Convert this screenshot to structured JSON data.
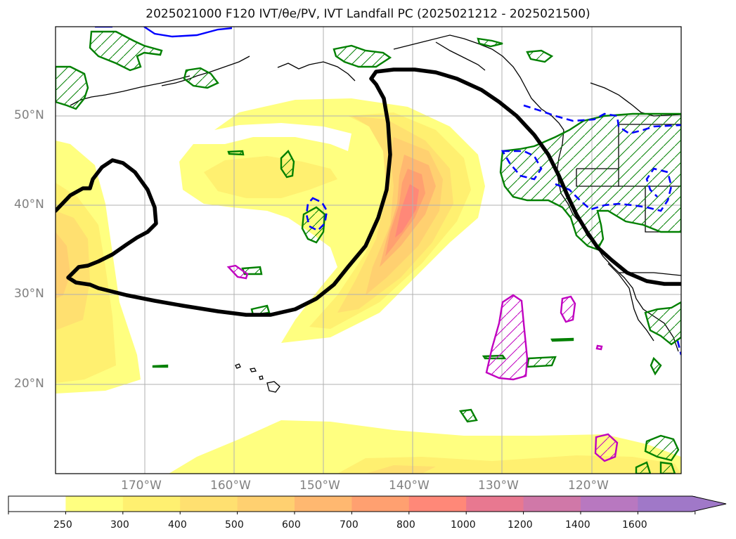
{
  "title": "2025021000 F120 IVT/θe/PV, IVT Landfall PC (2025021212 - 2025021500)",
  "lat_labels": [
    "50°N",
    "40°N",
    "30°N",
    "20°N"
  ],
  "lon_labels": [
    "170°W",
    "160°W",
    "150°W",
    "140°W",
    "130°W",
    "120°W"
  ],
  "colorbar": {
    "levels": [
      "250",
      "300",
      "400",
      "500",
      "600",
      "700",
      "800",
      "1000",
      "1200",
      "1400",
      "1600"
    ],
    "colors": [
      "#ffffff",
      "#ffff80",
      "#fff070",
      "#ffe070",
      "#ffd070",
      "#ffb870",
      "#ffa070",
      "#ff8878",
      "#e87890",
      "#d078a8",
      "#b878c0",
      "#a078c8"
    ],
    "extend": "max"
  },
  "legend_colors": {
    "ivt_landfall_contour": "#000000",
    "theta_e_hatch": "#008000",
    "pv_negative": "#0000ff",
    "pv_positive": "#c000c0"
  }
}
